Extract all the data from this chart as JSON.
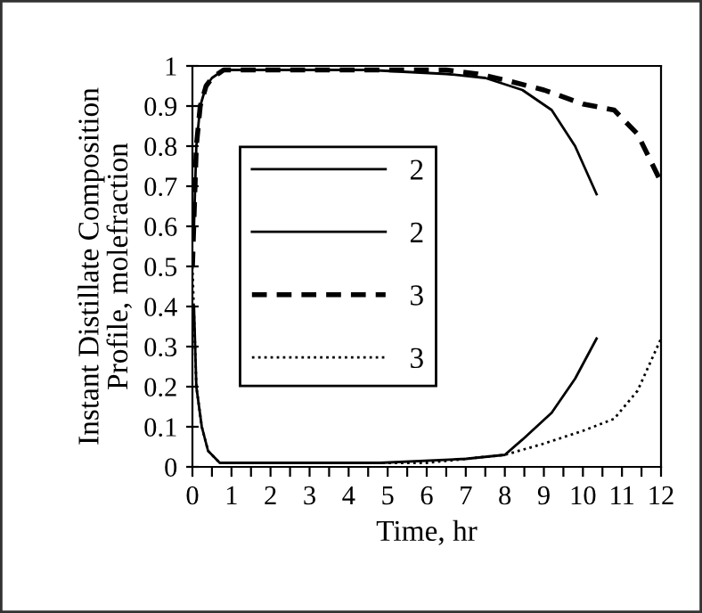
{
  "chart_data": {
    "type": "line",
    "xlabel": "Time, hr",
    "ylabel": "Instant Distillate Composition\nProfile, molefraction",
    "xlim": [
      0,
      12
    ],
    "ylim": [
      0,
      1
    ],
    "xticks": [
      0,
      {
        "value": 0.5,
        "label": null
      },
      1,
      {
        "value": 1.5,
        "label": null
      },
      2,
      {
        "value": 2.5,
        "label": null
      },
      3,
      {
        "value": 3.5,
        "label": null
      },
      4,
      {
        "value": 4.5,
        "label": null
      },
      5,
      {
        "value": 5.5,
        "label": null
      },
      6,
      {
        "value": 6.5,
        "label": null
      },
      7,
      {
        "value": 7.5,
        "label": null
      },
      8,
      {
        "value": 8.5,
        "label": null
      },
      9,
      {
        "value": 9.5,
        "label": null
      },
      10,
      {
        "value": 10.5,
        "label": null
      },
      11,
      {
        "value": 11.5,
        "label": null
      },
      12
    ],
    "yticks": [
      0,
      0.1,
      0.2,
      0.3,
      0.4,
      0.5,
      0.6,
      0.7,
      0.8,
      0.9,
      1
    ],
    "grid": false,
    "legend": "left",
    "series": [
      {
        "name": "2",
        "color": "#000000",
        "line_style": "solid",
        "x": [
          0.04,
          0.1,
          0.2,
          0.35,
          0.5,
          0.8,
          2,
          4.5,
          6.5,
          7.5,
          8.45,
          9.2,
          9.8,
          10.35
        ],
        "values": [
          0.6,
          0.8,
          0.9,
          0.95,
          0.97,
          0.99,
          0.99,
          0.99,
          0.98,
          0.97,
          0.94,
          0.89,
          0.8,
          0.68
        ]
      },
      {
        "name": "2",
        "color": "#000000",
        "line_style": "solid",
        "x": [
          0.04,
          0.1,
          0.24,
          0.4,
          0.7,
          2,
          4.8,
          7,
          8,
          8.45,
          9.2,
          9.8,
          10.35
        ],
        "values": [
          0.4,
          0.2,
          0.1,
          0.04,
          0.01,
          0.01,
          0.01,
          0.02,
          0.03,
          0.068,
          0.135,
          0.22,
          0.32
        ]
      },
      {
        "name": "3",
        "color": "#000000",
        "line_style": "dashed",
        "x": [
          0,
          0.1,
          0.2,
          0.35,
          0.5,
          0.8,
          2,
          6.5,
          7.3,
          8,
          9,
          10,
          10.8,
          11.4,
          12
        ],
        "values": [
          0.5,
          0.8,
          0.9,
          0.95,
          0.97,
          0.99,
          0.99,
          0.99,
          0.98,
          0.965,
          0.94,
          0.905,
          0.89,
          0.83,
          0.71
        ]
      },
      {
        "name": "3",
        "color": "#000000",
        "line_style": "dotted",
        "x": [
          0,
          0.1,
          0.24,
          0.4,
          0.7,
          2,
          6,
          8,
          9,
          10,
          10.8,
          11.4,
          12
        ],
        "values": [
          0.5,
          0.2,
          0.1,
          0.04,
          0.01,
          0.01,
          0.01,
          0.03,
          0.058,
          0.09,
          0.12,
          0.19,
          0.32
        ]
      }
    ]
  }
}
